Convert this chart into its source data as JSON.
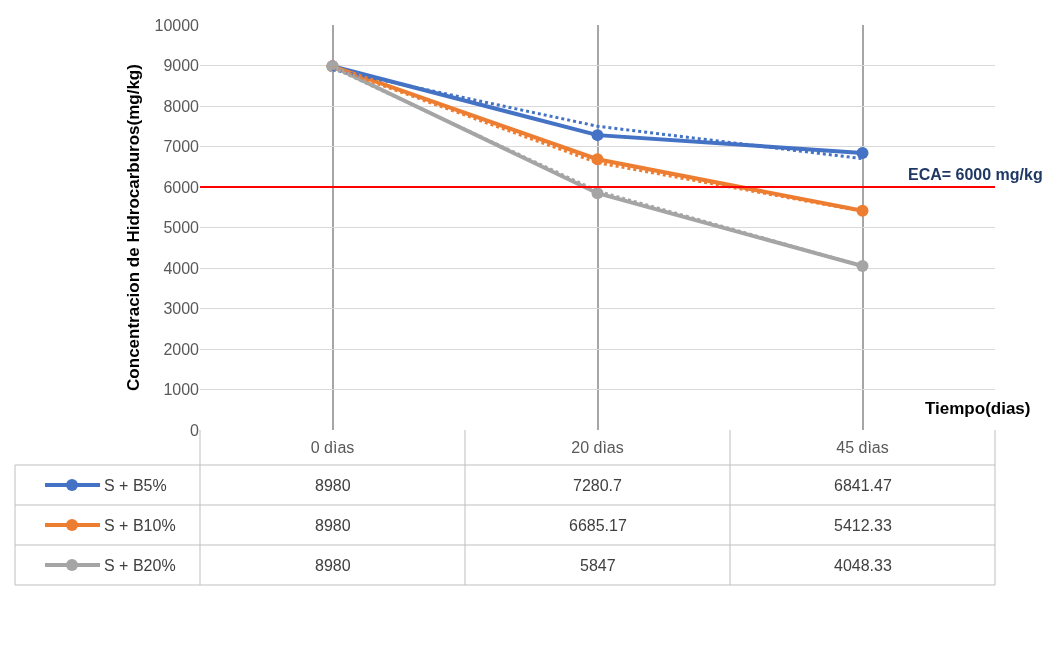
{
  "chart_data": {
    "type": "line",
    "categories": [
      "0 dìas",
      "20 dìas",
      "45 dìas"
    ],
    "xlabel": "Tiempo(dias)",
    "ylabel": "Concentracion de Hidrocarburos(mg/kg)",
    "ylim": [
      0,
      10000
    ],
    "yticks": [
      0,
      1000,
      2000,
      3000,
      4000,
      5000,
      6000,
      7000,
      8000,
      9000,
      10000
    ],
    "grid": true,
    "marker": "circle",
    "line_style": "solid",
    "legend": "bottom left",
    "series": [
      {
        "name": "S + B5%",
        "color": "#4472c4",
        "values": [
          8980,
          7280.7,
          6841.47
        ],
        "value_labels": [
          "8980",
          "7280.7",
          "6841.47"
        ]
      },
      {
        "name": "S + B10%",
        "color": "#ed7d31",
        "values": [
          8980,
          6685.17,
          5412.33
        ],
        "value_labels": [
          "8980",
          "6685.17",
          "5412.33"
        ]
      },
      {
        "name": "S + B20%",
        "color": "#a5a5a5",
        "values": [
          8980,
          5847,
          4048.33
        ],
        "value_labels": [
          "8980",
          "5847",
          "4048.33"
        ]
      },
      {
        "color": "#4472c4",
        "marker": "none",
        "line_style": "dotted",
        "values": [
          8900,
          7500,
          6700
        ]
      },
      {
        "color": "#ed7d31",
        "marker": "none",
        "line_style": "dotted",
        "values": [
          8950,
          6600,
          5400
        ]
      },
      {
        "color": "#a5a5a5",
        "marker": "none",
        "line_style": "dotted",
        "values": [
          8950,
          5900,
          4050
        ]
      }
    ],
    "ref_lines": [
      {
        "axis": "y",
        "value": 6000,
        "label": "ECA= 6000 mg/kg",
        "color": "#ff0000"
      }
    ]
  }
}
